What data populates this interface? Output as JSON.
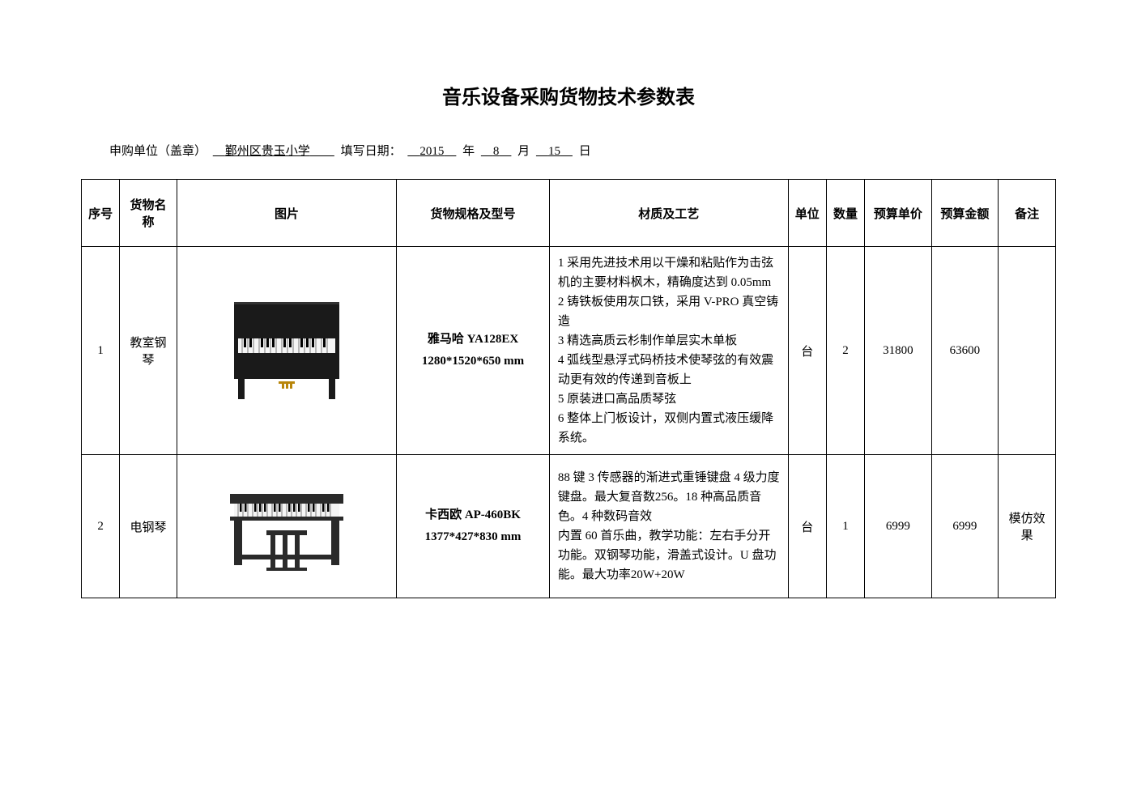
{
  "title": "音乐设备采购货物技术参数表",
  "header": {
    "unit_label": "申购单位（盖章）",
    "unit_value": "鄞州区贵玉小学",
    "date_label": "填写日期：",
    "year": "2015",
    "year_label": "年",
    "month": "8",
    "month_label": "月",
    "day": "15",
    "day_label": "日"
  },
  "columns": {
    "seq": "序号",
    "name": "货物名称",
    "image": "图片",
    "spec": "货物规格及型号",
    "material": "材质及工艺",
    "unit": "单位",
    "qty": "数量",
    "price": "预算单价",
    "amount": "预算金额",
    "note": "备注"
  },
  "rows": [
    {
      "seq": "1",
      "name": "教室钢琴",
      "spec": "雅马哈 YA128EX 1280*1520*650 mm",
      "material": "1 采用先进技术用以干燥和粘贴作为击弦机的主要材料枫木，精确度达到 0.05mm\n2 铸铁板使用灰口铁，采用 V-PRO 真空铸造\n3 精选高质云杉制作单层实木单板\n4 弧线型悬浮式码桥技术使琴弦的有效震动更有效的传递到音板上\n5 原装进口高品质琴弦\n6 整体上门板设计，双侧内置式液压缓降系统。",
      "unit": "台",
      "qty": "2",
      "price": "31800",
      "amount": "63600",
      "note": ""
    },
    {
      "seq": "2",
      "name": "电钢琴",
      "spec": "卡西欧 AP-460BK 1377*427*830 mm",
      "material": "88 键 3 传感器的渐进式重锤键盘 4 级力度键盘。最大复音数256。18 种高品质音色。4 种数码音效\n内置 60 首乐曲，教学功能：左右手分开功能。双钢琴功能，滑盖式设计。U 盘功能。最大功率20W+20W",
      "unit": "台",
      "qty": "1",
      "price": "6999",
      "amount": "6999",
      "note": "模仿效果"
    }
  ],
  "styling": {
    "background_color": "#ffffff",
    "border_color": "#000000",
    "text_color": "#000000",
    "title_fontsize": 24,
    "body_fontsize": 15,
    "font_family": "SimSun"
  }
}
